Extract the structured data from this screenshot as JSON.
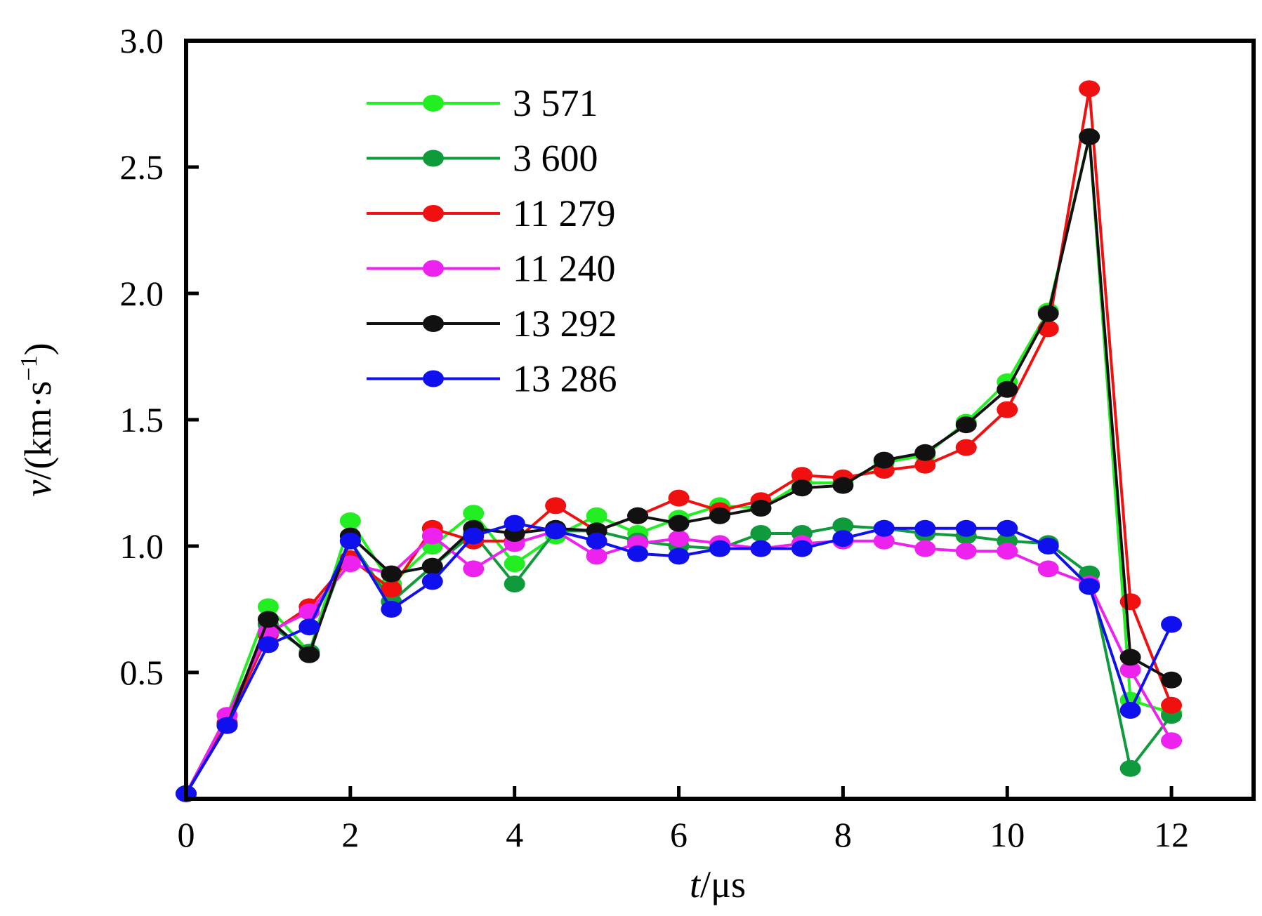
{
  "chart_data": {
    "type": "line",
    "title": "",
    "xlabel": {
      "var": "t",
      "unit": "/μs"
    },
    "ylabel": {
      "var": "v",
      "unit": "/(km·s",
      "sup": "−1",
      "close": ")"
    },
    "xlim": [
      0,
      13
    ],
    "ylim": [
      0,
      3.0
    ],
    "xticks": [
      0,
      2,
      4,
      6,
      8,
      10,
      12
    ],
    "xtick_labels": [
      "0",
      "2",
      "4",
      "6",
      "8",
      "10",
      "12"
    ],
    "yticks": [
      0.5,
      1.0,
      1.5,
      2.0,
      2.5,
      3.0
    ],
    "ytick_labels": [
      "0.5",
      "1.0",
      "1.5",
      "2.0",
      "2.5",
      "3.0"
    ],
    "grid": false,
    "legend_position": "top-left",
    "x": [
      0,
      0.5,
      1,
      1.5,
      2,
      2.5,
      3,
      3.5,
      4,
      4.5,
      5,
      5.5,
      6,
      6.5,
      7,
      7.5,
      8,
      8.5,
      9,
      9.5,
      10,
      10.5,
      11,
      11.5,
      12
    ],
    "series": [
      {
        "name": "3 571",
        "color": "#22ee22",
        "values": [
          0.02,
          0.33,
          0.76,
          0.58,
          1.1,
          0.85,
          1.0,
          1.13,
          0.93,
          1.04,
          1.12,
          1.05,
          1.11,
          1.16,
          1.15,
          1.25,
          1.25,
          1.33,
          1.36,
          1.49,
          1.65,
          1.93,
          2.62,
          0.39,
          0.34
        ]
      },
      {
        "name": "3 600",
        "color": "#0f9a3c",
        "values": [
          0.02,
          0.3,
          0.69,
          0.58,
          1.02,
          0.78,
          0.92,
          1.05,
          0.85,
          1.06,
          1.06,
          1.02,
          1.0,
          0.99,
          1.05,
          1.05,
          1.08,
          1.07,
          1.05,
          1.04,
          1.02,
          1.01,
          0.89,
          0.12,
          0.33
        ]
      },
      {
        "name": "11 279",
        "color": "#f01010",
        "values": [
          0.02,
          0.3,
          0.65,
          0.76,
          0.95,
          0.83,
          1.07,
          1.02,
          1.02,
          1.16,
          1.06,
          1.12,
          1.19,
          1.14,
          1.18,
          1.28,
          1.27,
          1.3,
          1.32,
          1.39,
          1.54,
          1.86,
          2.81,
          0.78,
          0.37
        ]
      },
      {
        "name": "11 240",
        "color": "#ee22ee",
        "values": [
          0.02,
          0.33,
          0.66,
          0.74,
          0.93,
          0.89,
          1.04,
          0.91,
          1.01,
          1.06,
          0.96,
          1.01,
          1.03,
          1.01,
          0.99,
          1.01,
          1.02,
          1.02,
          0.99,
          0.98,
          0.98,
          0.91,
          0.85,
          0.51,
          0.23
        ]
      },
      {
        "name": "13 292",
        "color": "#111111",
        "values": [
          0.02,
          0.29,
          0.71,
          0.57,
          1.04,
          0.89,
          0.92,
          1.07,
          1.05,
          1.07,
          1.06,
          1.12,
          1.09,
          1.12,
          1.15,
          1.23,
          1.24,
          1.34,
          1.37,
          1.48,
          1.62,
          1.92,
          2.62,
          0.56,
          0.47
        ]
      },
      {
        "name": "13 286",
        "color": "#1010ee",
        "values": [
          0.02,
          0.29,
          0.61,
          0.68,
          1.02,
          0.75,
          0.86,
          1.04,
          1.09,
          1.06,
          1.02,
          0.97,
          0.96,
          0.99,
          0.99,
          0.99,
          1.03,
          1.07,
          1.07,
          1.07,
          1.07,
          1.0,
          0.84,
          0.35,
          0.69
        ]
      }
    ]
  }
}
